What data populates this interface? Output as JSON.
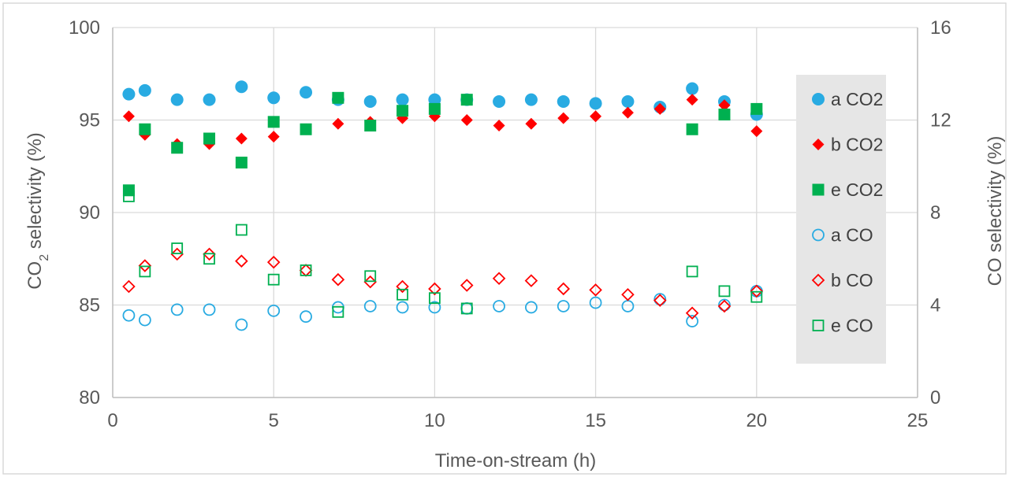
{
  "chart_data": {
    "type": "scatter",
    "xlabel": "Time-on-stream (h)",
    "ylabel_left": {
      "prefix": "CO",
      "subscript": "2",
      "suffix": " selectivity (%)"
    },
    "ylabel_right": "CO selectivity (%)",
    "xlim": [
      0,
      25
    ],
    "x_ticks": [
      "0",
      "5",
      "10",
      "15",
      "20",
      "25"
    ],
    "ylim_left": [
      80,
      100
    ],
    "y_ticks_left": [
      "80",
      "85",
      "90",
      "95",
      "100"
    ],
    "ylim_right": [
      0,
      16
    ],
    "y_ticks_right": [
      "0",
      "4",
      "8",
      "12",
      "16"
    ],
    "grid": "horizontal",
    "legend_position": "right",
    "series": [
      {
        "name": "a CO2",
        "axis": "left",
        "marker": "circle",
        "filled": true,
        "color": "#29ABE2",
        "x": [
          0.5,
          1,
          2,
          3,
          4,
          5,
          6,
          7,
          8,
          9,
          10,
          11,
          12,
          13,
          14,
          15,
          16,
          17,
          18,
          19,
          20
        ],
        "y": [
          96.4,
          96.6,
          96.1,
          96.1,
          96.8,
          96.2,
          96.5,
          96.1,
          96.0,
          96.1,
          96.1,
          96.1,
          96.0,
          96.1,
          96.0,
          95.9,
          96.0,
          95.7,
          96.7,
          96.0,
          95.3
        ]
      },
      {
        "name": "b CO2",
        "axis": "left",
        "marker": "diamond",
        "filled": true,
        "color": "#FF0000",
        "x": [
          0.5,
          1,
          2,
          3,
          4,
          5,
          6,
          7,
          8,
          9,
          10,
          11,
          12,
          13,
          14,
          15,
          16,
          17,
          18,
          19,
          20
        ],
        "y": [
          95.2,
          94.2,
          93.7,
          93.7,
          94.0,
          94.1,
          94.5,
          94.8,
          94.9,
          95.1,
          95.2,
          95.0,
          94.7,
          94.8,
          95.1,
          95.2,
          95.4,
          95.6,
          96.1,
          95.8,
          94.4
        ]
      },
      {
        "name": "e CO2",
        "axis": "left",
        "marker": "square",
        "filled": true,
        "color": "#00B050",
        "x": [
          0.5,
          1,
          2,
          3,
          4,
          5,
          6,
          7,
          8,
          9,
          10,
          11,
          18,
          19,
          20
        ],
        "y": [
          91.2,
          94.5,
          93.5,
          94.0,
          92.7,
          94.9,
          94.5,
          96.2,
          94.7,
          95.5,
          95.6,
          96.1,
          94.5,
          95.3,
          95.6
        ]
      },
      {
        "name": "a CO",
        "axis": "right",
        "marker": "circle",
        "filled": false,
        "color": "#29ABE2",
        "x": [
          0.5,
          1,
          2,
          3,
          4,
          5,
          6,
          7,
          8,
          9,
          10,
          11,
          12,
          13,
          14,
          15,
          16,
          17,
          18,
          19,
          20
        ],
        "y": [
          3.55,
          3.35,
          3.8,
          3.8,
          3.15,
          3.75,
          3.5,
          3.9,
          3.95,
          3.9,
          3.9,
          3.85,
          3.95,
          3.9,
          3.95,
          4.1,
          3.95,
          4.25,
          3.3,
          4.0,
          4.6
        ]
      },
      {
        "name": "b CO",
        "axis": "right",
        "marker": "diamond",
        "filled": false,
        "color": "#FF0000",
        "x": [
          0.5,
          1,
          2,
          3,
          4,
          5,
          6,
          7,
          8,
          9,
          10,
          11,
          12,
          13,
          14,
          15,
          16,
          17,
          18,
          19,
          20
        ],
        "y": [
          4.8,
          5.7,
          6.2,
          6.2,
          5.9,
          5.85,
          5.5,
          5.1,
          5.0,
          4.8,
          4.7,
          4.85,
          5.15,
          5.05,
          4.7,
          4.65,
          4.45,
          4.2,
          3.65,
          3.95,
          4.6
        ]
      },
      {
        "name": "e CO",
        "axis": "right",
        "marker": "square",
        "filled": false,
        "color": "#00B050",
        "x": [
          0.5,
          1,
          2,
          3,
          4,
          5,
          6,
          7,
          8,
          9,
          10,
          11,
          18,
          19,
          20
        ],
        "y": [
          8.7,
          5.45,
          6.45,
          6.0,
          7.25,
          5.1,
          5.5,
          3.7,
          5.25,
          4.45,
          4.3,
          3.85,
          5.45,
          4.6,
          4.35
        ]
      }
    ]
  }
}
